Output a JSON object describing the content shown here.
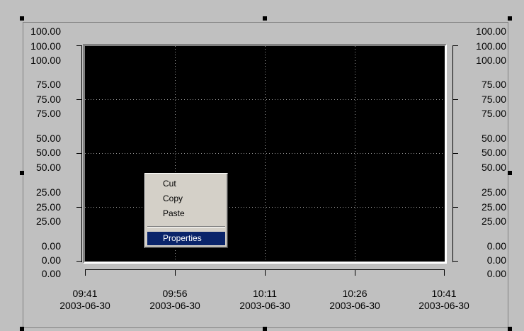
{
  "chart": {
    "left_axis_labels": [
      {
        "text": "100.00"
      },
      {
        "text": "100.00"
      },
      {
        "text": "100.00"
      },
      {
        "text": "75.00"
      },
      {
        "text": "75.00"
      },
      {
        "text": "75.00"
      },
      {
        "text": "50.00"
      },
      {
        "text": "50.00"
      },
      {
        "text": "50.00"
      },
      {
        "text": "25.00"
      },
      {
        "text": "25.00"
      },
      {
        "text": "25.00"
      },
      {
        "text": "0.00"
      },
      {
        "text": "0.00"
      },
      {
        "text": "0.00"
      }
    ],
    "right_axis_labels": [
      {
        "text": "100.00"
      },
      {
        "text": "100.00"
      },
      {
        "text": "100.00"
      },
      {
        "text": "75.00"
      },
      {
        "text": "75.00"
      },
      {
        "text": "75.00"
      },
      {
        "text": "50.00"
      },
      {
        "text": "50.00"
      },
      {
        "text": "50.00"
      },
      {
        "text": "25.00"
      },
      {
        "text": "25.00"
      },
      {
        "text": "25.00"
      },
      {
        "text": "0.00"
      },
      {
        "text": "0.00"
      },
      {
        "text": "0.00"
      }
    ],
    "x_labels": [
      {
        "time": "09:41",
        "date": "2003-06-30"
      },
      {
        "time": "09:56",
        "date": "2003-06-30"
      },
      {
        "time": "10:11",
        "date": "2003-06-30"
      },
      {
        "time": "10:26",
        "date": "2003-06-30"
      },
      {
        "time": "10:41",
        "date": "2003-06-30"
      }
    ],
    "plot_background": "#000000",
    "grid": "dotted"
  },
  "context_menu": {
    "items": [
      {
        "label": "Cut"
      },
      {
        "label": "Copy"
      },
      {
        "label": "Paste"
      },
      {
        "label": "Properties"
      }
    ],
    "selected_color": "#0a246a"
  }
}
